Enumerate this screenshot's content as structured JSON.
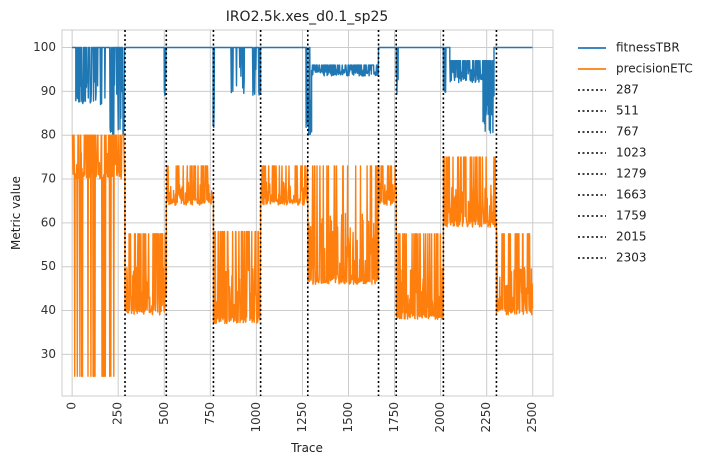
{
  "chart_data": {
    "type": "line",
    "title": "IRO2.5k.xes_d0.1_sp25",
    "xlabel": "Trace",
    "ylabel": "Metric value",
    "xlim": [
      -55,
      2610
    ],
    "ylim": [
      20.5,
      104
    ],
    "xticks": [
      0,
      250,
      500,
      750,
      1000,
      1250,
      1500,
      1750,
      2000,
      2250,
      2500
    ],
    "yticks": [
      30,
      40,
      50,
      60,
      70,
      80,
      90,
      100
    ],
    "grid": true,
    "legend_position": "outside-right",
    "series": [
      {
        "name": "fitnessTBR",
        "color": "#1f77b4",
        "segments": [
          {
            "x0": 0,
            "x1": 20,
            "base": 100,
            "low": 100,
            "flicker": 0
          },
          {
            "x0": 20,
            "x1": 130,
            "base": 100,
            "low": 87,
            "flicker": 0.5
          },
          {
            "x0": 130,
            "x1": 200,
            "base": 100,
            "low": 87,
            "flicker": 0.15
          },
          {
            "x0": 200,
            "x1": 287,
            "base": 100,
            "low": 80,
            "flicker": 0.45
          },
          {
            "x0": 287,
            "x1": 500,
            "base": 100,
            "low": 100,
            "flicker": 0
          },
          {
            "x0": 500,
            "x1": 511,
            "base": 100,
            "low": 89,
            "flicker": 0.6
          },
          {
            "x0": 511,
            "x1": 765,
            "base": 100,
            "low": 100,
            "flicker": 0
          },
          {
            "x0": 765,
            "x1": 772,
            "base": 100,
            "low": 80,
            "flicker": 1
          },
          {
            "x0": 772,
            "x1": 860,
            "base": 100,
            "low": 100,
            "flicker": 0
          },
          {
            "x0": 860,
            "x1": 935,
            "base": 100,
            "low": 89,
            "flicker": 0.25
          },
          {
            "x0": 935,
            "x1": 975,
            "base": 100,
            "low": 100,
            "flicker": 0
          },
          {
            "x0": 975,
            "x1": 1023,
            "base": 100,
            "low": 89,
            "flicker": 0.5
          },
          {
            "x0": 1023,
            "x1": 1270,
            "base": 100,
            "low": 100,
            "flicker": 0
          },
          {
            "x0": 1270,
            "x1": 1300,
            "base": 100,
            "low": 80,
            "flicker": 0.7
          },
          {
            "x0": 1300,
            "x1": 1663,
            "base": 96,
            "low": 93.5,
            "flicker": 0.6
          },
          {
            "x0": 1663,
            "x1": 1759,
            "base": 100,
            "low": 100,
            "flicker": 0
          },
          {
            "x0": 1759,
            "x1": 1770,
            "base": 100,
            "low": 88,
            "flicker": 0.7
          },
          {
            "x0": 1770,
            "x1": 2015,
            "base": 100,
            "low": 100,
            "flicker": 0
          },
          {
            "x0": 2015,
            "x1": 2030,
            "base": 100,
            "low": 89.5,
            "flicker": 0.7
          },
          {
            "x0": 2030,
            "x1": 2050,
            "base": 100,
            "low": 100,
            "flicker": 0
          },
          {
            "x0": 2050,
            "x1": 2230,
            "base": 97,
            "low": 92,
            "flicker": 0.6
          },
          {
            "x0": 2230,
            "x1": 2290,
            "base": 97,
            "low": 80,
            "flicker": 0.7
          },
          {
            "x0": 2290,
            "x1": 2303,
            "base": 100,
            "low": 100,
            "flicker": 0
          },
          {
            "x0": 2303,
            "x1": 2500,
            "base": 100,
            "low": 100,
            "flicker": 0
          }
        ]
      },
      {
        "name": "precisionETC",
        "color": "#ff7f0e",
        "segments": [
          {
            "x0": 0,
            "x1": 287,
            "base": 80,
            "low": 70,
            "flicker": 0.7,
            "deep": 25,
            "deepRate": 0.12
          },
          {
            "x0": 287,
            "x1": 511,
            "base": 57.5,
            "low": 39,
            "flicker": 0.8
          },
          {
            "x0": 511,
            "x1": 767,
            "base": 73,
            "low": 64,
            "flicker": 0.8
          },
          {
            "x0": 767,
            "x1": 1023,
            "base": 58,
            "low": 37,
            "flicker": 0.8
          },
          {
            "x0": 1023,
            "x1": 1279,
            "base": 73,
            "low": 64,
            "flicker": 0.8
          },
          {
            "x0": 1279,
            "x1": 1663,
            "base": 73,
            "low": 46,
            "flicker": 0.85
          },
          {
            "x0": 1663,
            "x1": 1759,
            "base": 73,
            "low": 64,
            "flicker": 0.8
          },
          {
            "x0": 1759,
            "x1": 2015,
            "base": 57.5,
            "low": 38,
            "flicker": 0.8
          },
          {
            "x0": 2015,
            "x1": 2303,
            "base": 75,
            "low": 59,
            "flicker": 0.8
          },
          {
            "x0": 2303,
            "x1": 2500,
            "base": 57.5,
            "low": 39,
            "flicker": 0.8
          }
        ]
      }
    ],
    "vlines": [
      {
        "label": "287",
        "x": 287
      },
      {
        "label": "511",
        "x": 511
      },
      {
        "label": "767",
        "x": 767
      },
      {
        "label": "1023",
        "x": 1023
      },
      {
        "label": "1279",
        "x": 1279
      },
      {
        "label": "1663",
        "x": 1663
      },
      {
        "label": "1759",
        "x": 1759
      },
      {
        "label": "2015",
        "x": 2015
      },
      {
        "label": "2303",
        "x": 2303
      }
    ]
  }
}
